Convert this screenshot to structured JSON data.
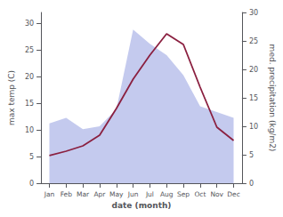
{
  "chart_data": {
    "type": "line",
    "categories": [
      "Jan",
      "Feb",
      "Mar",
      "Apr",
      "May",
      "Jun",
      "Jul",
      "Aug",
      "Sep",
      "Oct",
      "Nov",
      "Dec"
    ],
    "xlabel": "date (month)",
    "ylabel": "max temp (C)",
    "y2label": "med. precipitation (kg/m2)",
    "ylim": [
      0,
      32
    ],
    "yticks": [
      0,
      5,
      10,
      15,
      20,
      25,
      30
    ],
    "y2lim": [
      0,
      30
    ],
    "y2ticks": [
      0,
      5,
      10,
      15,
      20,
      25,
      30
    ],
    "grid": false,
    "series": [
      {
        "type": "area",
        "axis": "y2",
        "color": "#b0b8e8",
        "values": [
          10.5,
          11.5,
          9.5,
          10.0,
          13.0,
          27.0,
          24.5,
          22.5,
          19.0,
          13.5,
          12.5,
          11.5
        ]
      },
      {
        "type": "line",
        "color": "#8b2040",
        "values": [
          5.2,
          6.0,
          7.0,
          9.0,
          14.0,
          19.5,
          24.0,
          28.0,
          26.0,
          18.0,
          10.5,
          8.0
        ]
      }
    ]
  }
}
